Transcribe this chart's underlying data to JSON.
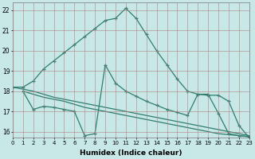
{
  "background_color": "#c8e8e8",
  "grid_color": "#b0c8c8",
  "line_color": "#2d7d6e",
  "x_label": "Humidex (Indice chaleur)",
  "x_ticks": [
    0,
    1,
    2,
    3,
    4,
    5,
    6,
    7,
    8,
    9,
    10,
    11,
    12,
    13,
    14,
    15,
    16,
    17,
    18,
    19,
    20,
    21,
    22,
    23
  ],
  "y_ticks": [
    16,
    17,
    18,
    19,
    20,
    21,
    22
  ],
  "xlim": [
    0,
    23
  ],
  "ylim": [
    15.7,
    22.4
  ],
  "curve1_x": [
    0,
    1,
    2,
    3,
    4,
    5,
    6,
    7,
    8,
    9,
    10,
    11,
    12,
    13,
    14,
    15,
    16,
    17,
    18,
    19,
    20,
    21,
    22,
    23
  ],
  "curve1_y": [
    18.2,
    18.2,
    18.5,
    19.1,
    19.5,
    19.9,
    20.3,
    20.7,
    21.1,
    21.5,
    21.6,
    22.1,
    21.6,
    20.8,
    20.0,
    19.3,
    18.6,
    18.0,
    17.85,
    17.8,
    17.8,
    17.5,
    16.3,
    15.7
  ],
  "curve2_x": [
    0,
    1,
    2,
    3,
    4,
    5,
    6,
    7,
    8,
    9,
    10,
    11,
    12,
    13,
    14,
    15,
    16,
    17,
    18,
    19,
    20,
    21,
    22,
    23
  ],
  "curve2_y": [
    18.2,
    18.1,
    18.0,
    17.85,
    17.7,
    17.6,
    17.5,
    17.4,
    17.3,
    17.2,
    17.1,
    17.0,
    16.9,
    16.8,
    16.7,
    16.6,
    16.5,
    16.4,
    16.3,
    16.2,
    16.1,
    16.0,
    15.9,
    15.8
  ],
  "curve3_x": [
    1,
    2,
    3,
    4,
    5,
    6,
    7,
    8,
    9,
    10,
    11,
    12,
    13,
    14,
    15,
    16,
    17,
    18,
    19,
    20,
    21,
    22,
    23
  ],
  "curve3_y": [
    18.0,
    17.85,
    17.7,
    17.6,
    17.5,
    17.35,
    17.2,
    17.1,
    17.0,
    16.9,
    16.8,
    16.7,
    16.6,
    16.5,
    16.4,
    16.3,
    16.2,
    16.1,
    16.0,
    15.9,
    15.85,
    15.8,
    15.75
  ],
  "curve4_x": [
    1,
    2,
    3,
    4,
    5,
    6,
    7,
    8,
    9,
    10,
    11,
    12,
    13,
    14,
    15,
    16,
    17,
    18,
    19,
    20,
    21,
    22,
    23
  ],
  "curve4_y": [
    18.0,
    17.1,
    17.25,
    17.2,
    17.1,
    17.0,
    15.8,
    15.9,
    19.3,
    18.4,
    18.0,
    17.75,
    17.5,
    17.3,
    17.1,
    16.95,
    16.8,
    17.85,
    17.85,
    16.9,
    15.9,
    15.8,
    15.75
  ]
}
